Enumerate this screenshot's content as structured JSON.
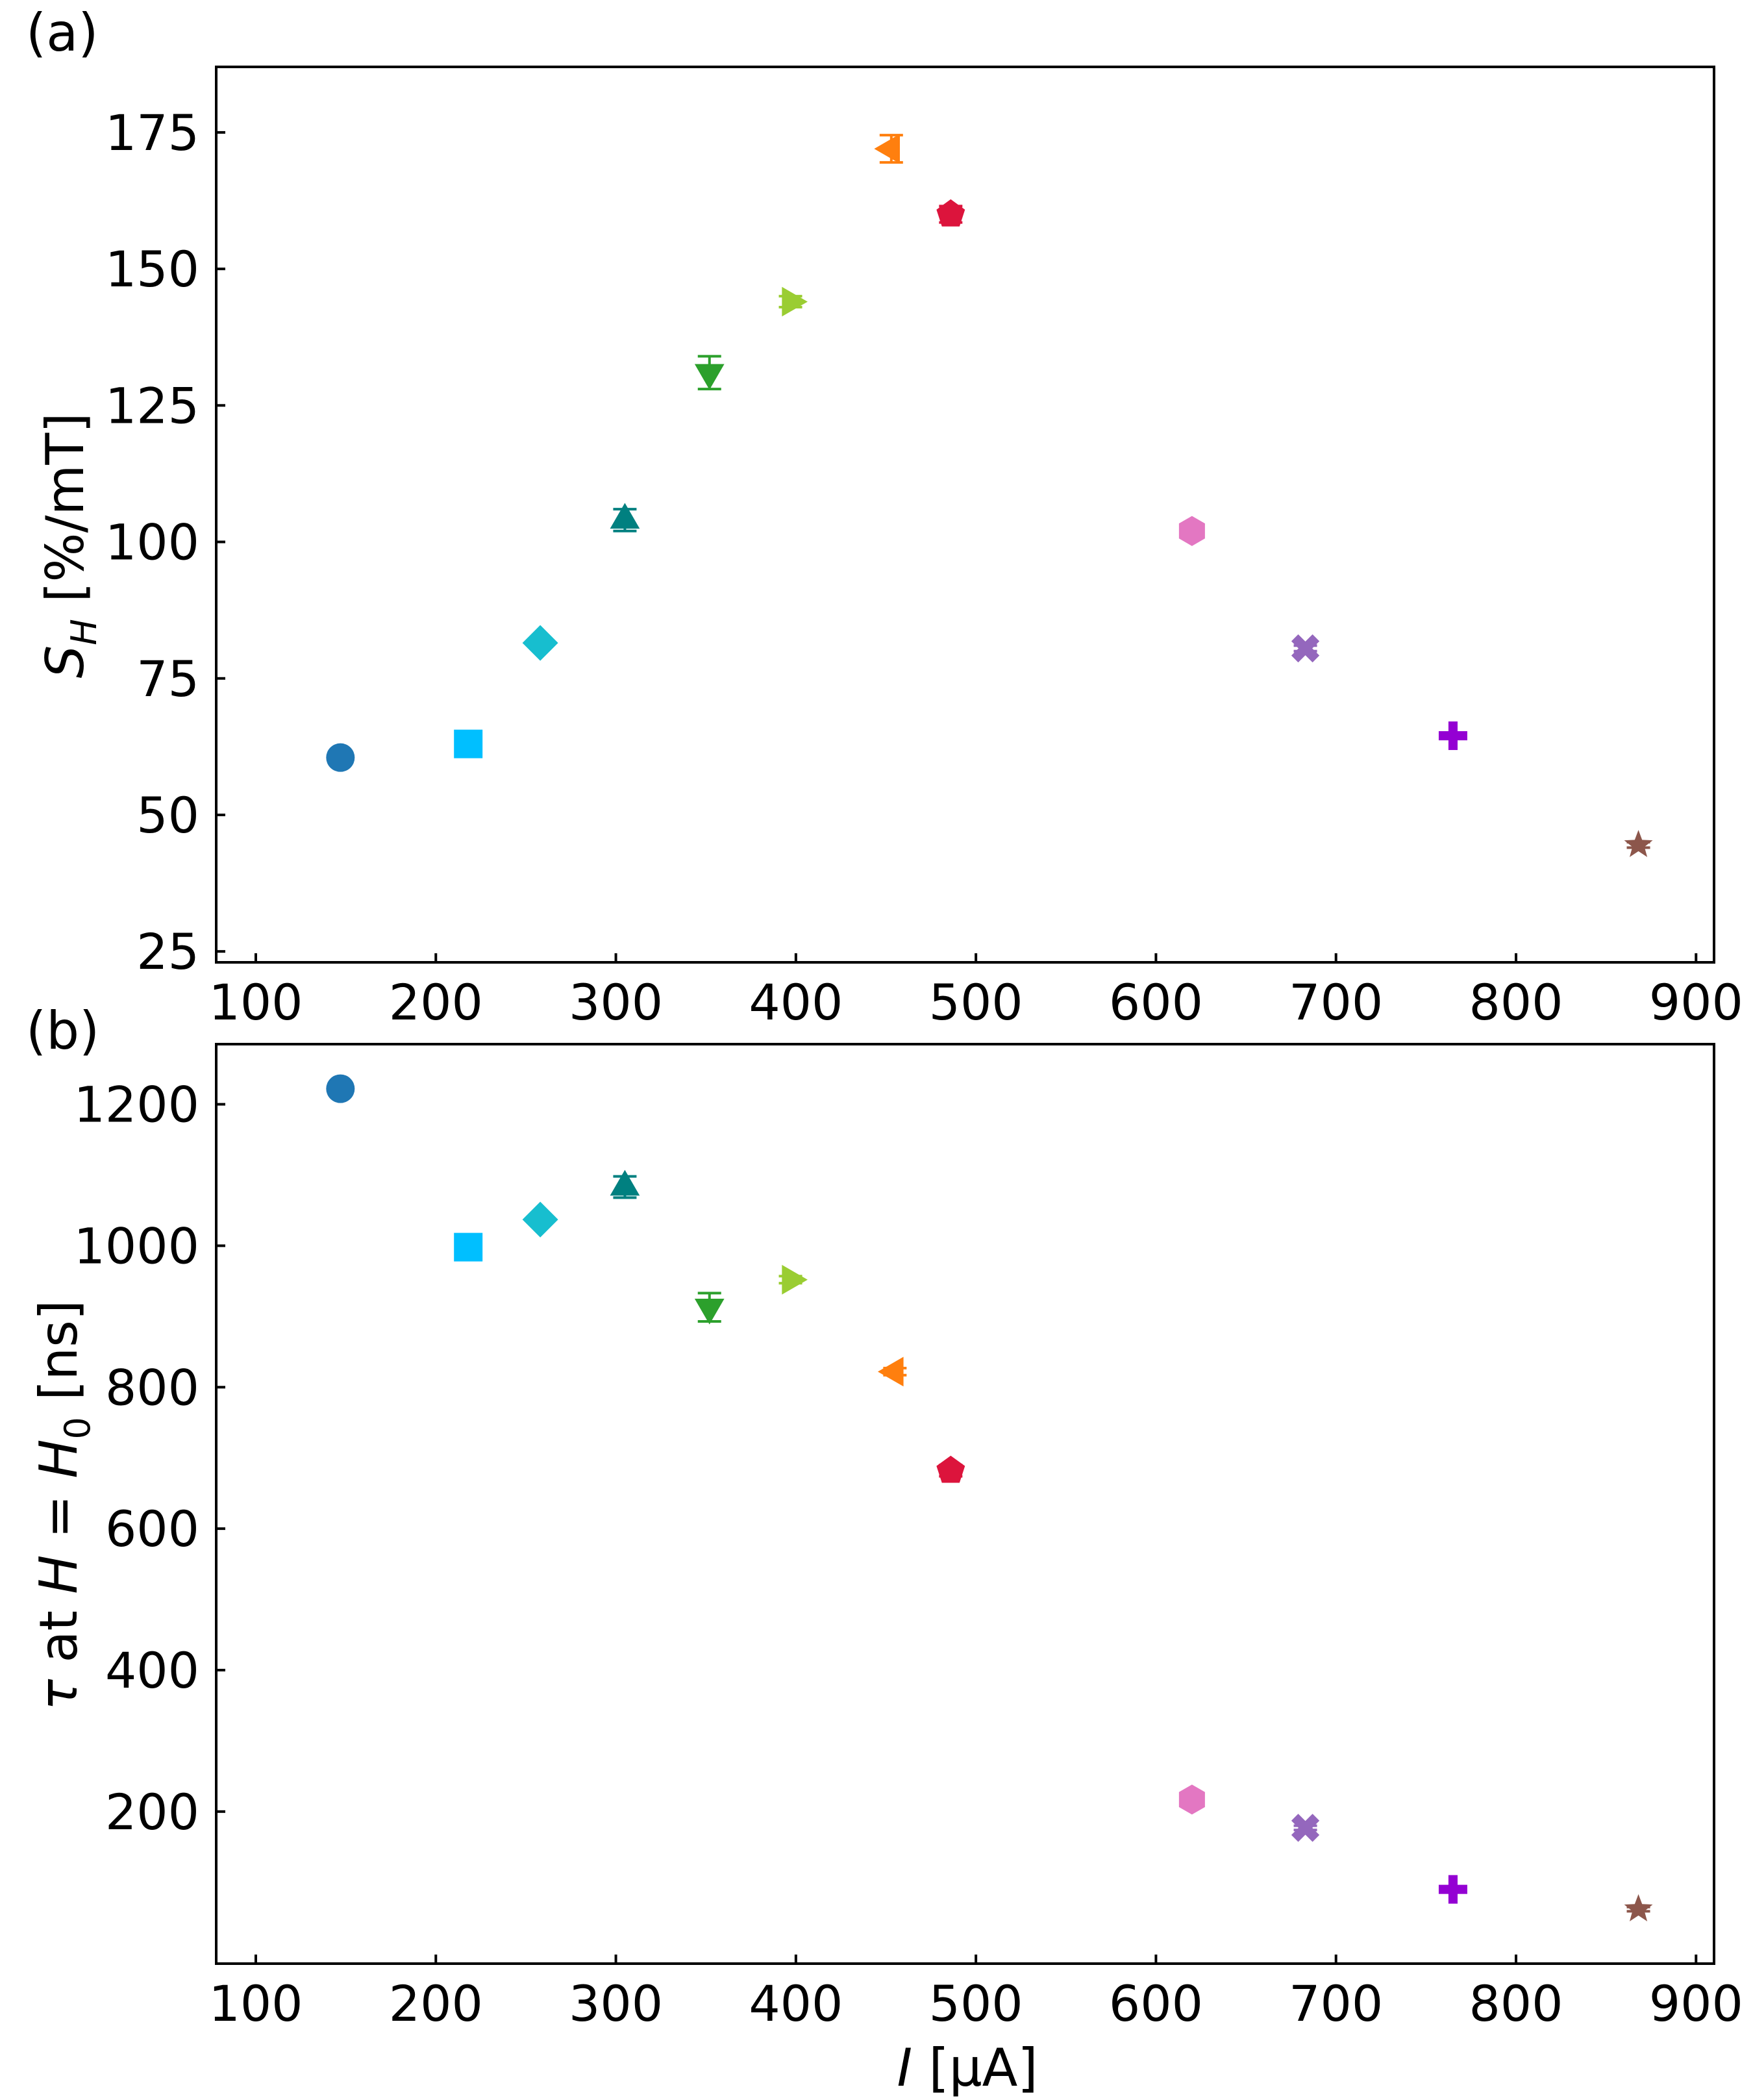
{
  "chart_data": [
    {
      "type": "scatter",
      "panel_label": "(a)",
      "xlabel": "",
      "ylabel": "S_H [%/mT]",
      "xlim": [
        78,
        910
      ],
      "ylim": [
        23,
        187
      ],
      "xticks": [
        100,
        200,
        300,
        400,
        500,
        600,
        700,
        800,
        900
      ],
      "yticks": [
        25,
        50,
        75,
        100,
        125,
        150,
        175
      ],
      "grid": false,
      "points": [
        {
          "x": 147,
          "y": 60.5,
          "marker": "circle",
          "color": "#1f77b4",
          "err": 0.5
        },
        {
          "x": 218,
          "y": 63,
          "marker": "square",
          "color": "#00bfff",
          "err": 0.5
        },
        {
          "x": 258,
          "y": 81.5,
          "marker": "diamond",
          "color": "#17becf",
          "err": 0.5
        },
        {
          "x": 305,
          "y": 104,
          "marker": "triangle-up",
          "color": "#008080",
          "err": 2
        },
        {
          "x": 352,
          "y": 131,
          "marker": "triangle-down",
          "color": "#2ca02c",
          "err": 3
        },
        {
          "x": 397,
          "y": 144,
          "marker": "triangle-right",
          "color": "#9acd32",
          "err": 1
        },
        {
          "x": 453,
          "y": 172,
          "marker": "triangle-left",
          "color": "#ff7f0e",
          "err": 2.5
        },
        {
          "x": 486,
          "y": 160,
          "marker": "pentagon",
          "color": "#dc143c",
          "err": 1.5
        },
        {
          "x": 620,
          "y": 102,
          "marker": "hexagon",
          "color": "#e377c2",
          "err": 0.5
        },
        {
          "x": 683,
          "y": 80.5,
          "marker": "x-filled",
          "color": "#9467bd",
          "err": 0.5
        },
        {
          "x": 765,
          "y": 64.5,
          "marker": "plus-filled",
          "color": "#9400d3",
          "err": 0.5
        },
        {
          "x": 868,
          "y": 44.5,
          "marker": "star",
          "color": "#8c564b",
          "err": 0.5
        }
      ]
    },
    {
      "type": "scatter",
      "panel_label": "(b)",
      "xlabel": "I [μA]",
      "ylabel": "τ at H = H_0 [ns]",
      "xlim": [
        78,
        910
      ],
      "ylim": [
        -15,
        1285
      ],
      "xticks": [
        100,
        200,
        300,
        400,
        500,
        600,
        700,
        800,
        900
      ],
      "yticks": [
        200,
        400,
        600,
        800,
        1000,
        1200
      ],
      "grid": false,
      "points": [
        {
          "x": 147,
          "y": 1222,
          "marker": "circle",
          "color": "#1f77b4",
          "err": 5
        },
        {
          "x": 218,
          "y": 998,
          "marker": "square",
          "color": "#00bfff",
          "err": 5
        },
        {
          "x": 258,
          "y": 1037,
          "marker": "diamond",
          "color": "#17becf",
          "err": 5
        },
        {
          "x": 305,
          "y": 1083,
          "marker": "triangle-up",
          "color": "#008080",
          "err": 15
        },
        {
          "x": 352,
          "y": 913,
          "marker": "triangle-down",
          "color": "#2ca02c",
          "err": 20
        },
        {
          "x": 397,
          "y": 952,
          "marker": "triangle-right",
          "color": "#9acd32",
          "err": 5
        },
        {
          "x": 455,
          "y": 822,
          "marker": "triangle-left",
          "color": "#ff7f0e",
          "err": 5
        },
        {
          "x": 486,
          "y": 682,
          "marker": "pentagon",
          "color": "#dc143c",
          "err": 8
        },
        {
          "x": 620,
          "y": 217,
          "marker": "hexagon",
          "color": "#e377c2",
          "err": 3
        },
        {
          "x": 683,
          "y": 177,
          "marker": "x-filled",
          "color": "#9467bd",
          "err": 3
        },
        {
          "x": 765,
          "y": 90,
          "marker": "plus-filled",
          "color": "#9400d3",
          "err": 3
        },
        {
          "x": 868,
          "y": 62,
          "marker": "star",
          "color": "#8c564b",
          "err": 3
        }
      ]
    }
  ]
}
